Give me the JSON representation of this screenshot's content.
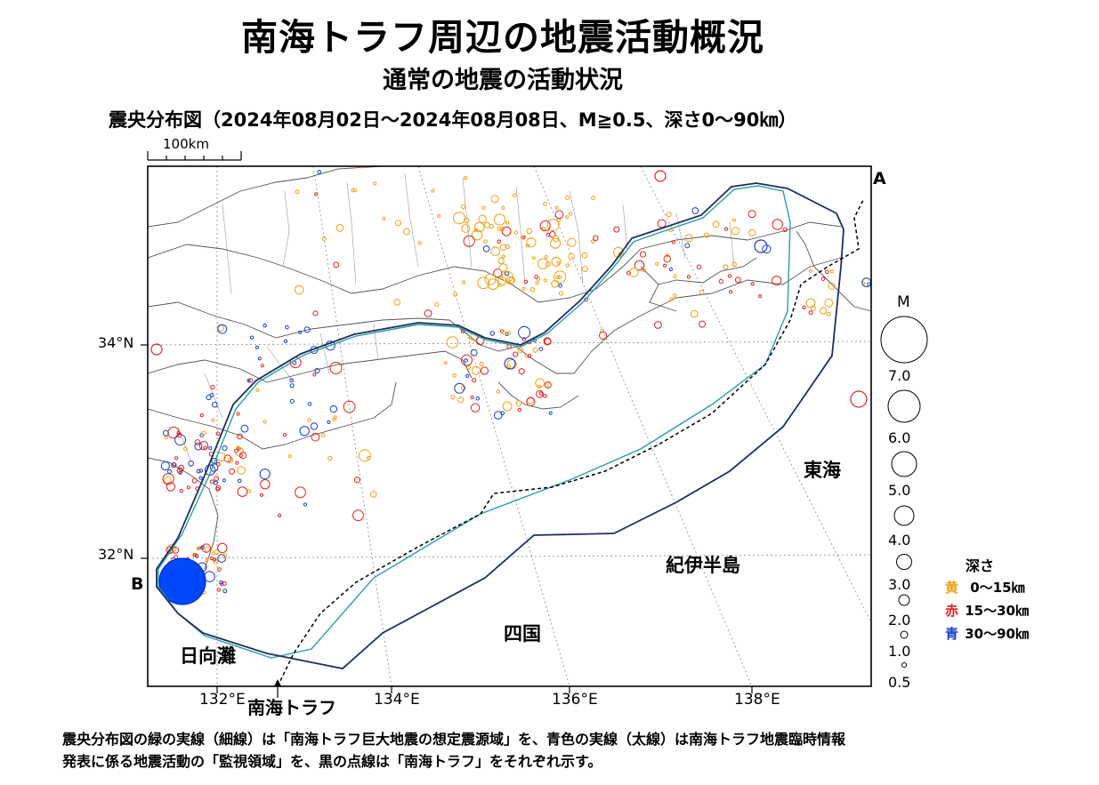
{
  "header": {
    "title": "南海トラフ周辺の地震活動概況",
    "subtitle": "通常の地震の活動状況",
    "map_title": "震央分布図（2024年08月02日～2024年08月08日、M≧0.5、深さ0～90㎞）"
  },
  "map": {
    "scale_bar_label": "100km",
    "latitude_labels": [
      "34°N",
      "32°N"
    ],
    "longitude_labels": [
      "132°E",
      "134°E",
      "136°E",
      "138°E"
    ],
    "point_labels": {
      "a": "A",
      "b": "B"
    },
    "region_labels": {
      "tokai": "東海",
      "kii": "紀伊半島",
      "shikoku": "四国",
      "hyuganada": "日向灘",
      "trough": "南海トラフ"
    }
  },
  "magnitude_legend": {
    "title": "M",
    "values": [
      "7.0",
      "6.0",
      "5.0",
      "4.0",
      "3.0",
      "2.0",
      "1.0",
      "0.5"
    ]
  },
  "depth_legend": {
    "title": "深さ",
    "rows": [
      {
        "color_name": "黄",
        "range": "0～15㎞",
        "color": "#f0a010"
      },
      {
        "color_name": "赤",
        "range": "15～30㎞",
        "color": "#e02020"
      },
      {
        "color_name": "青",
        "range": "30～90㎞",
        "color": "#1a3ccc"
      }
    ]
  },
  "colors": {
    "source_region_line": "#2aa0a0",
    "monitoring_region_line": "#1e2f60",
    "trough_line": "#000000",
    "big_event_fill": "#0048ff"
  },
  "footnote": {
    "line1": "震央分布図の緑の実線（細線）は「南海トラフ巨大地震の想定震源域」を、青色の実線（太線）は南海トラフ地震臨時情報",
    "line2": "発表に係る地震活動の「監視領域」を、黒の点線は「南海トラフ」をそれぞれ示す。"
  }
}
